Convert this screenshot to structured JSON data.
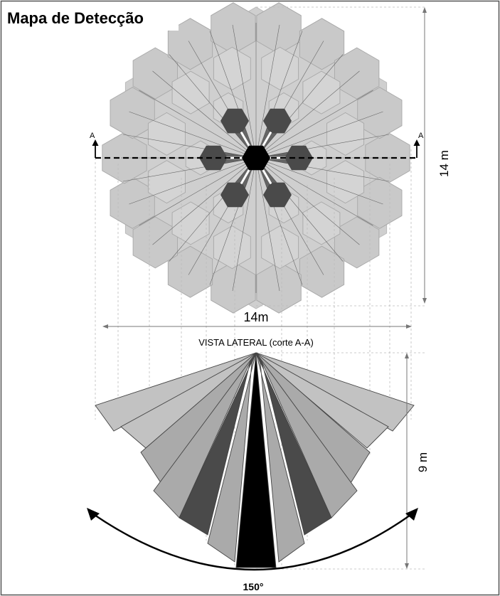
{
  "title": "Mapa de Detecção",
  "top_view": {
    "section_marker_left": "A",
    "section_marker_right": "A",
    "height_dimension": "14 m",
    "width_dimension": "14m"
  },
  "side_view": {
    "caption": "VISTA LATERAL (corte A-A)",
    "height_dimension": "9 m",
    "angle": "150°"
  },
  "colors": {
    "hex_fill": "#cfcfcf",
    "beam_dark": "#4a4a4a",
    "beam_black": "#000000",
    "beam_mid": "#aaaaaa",
    "beam_light": "#c2c2c2"
  }
}
